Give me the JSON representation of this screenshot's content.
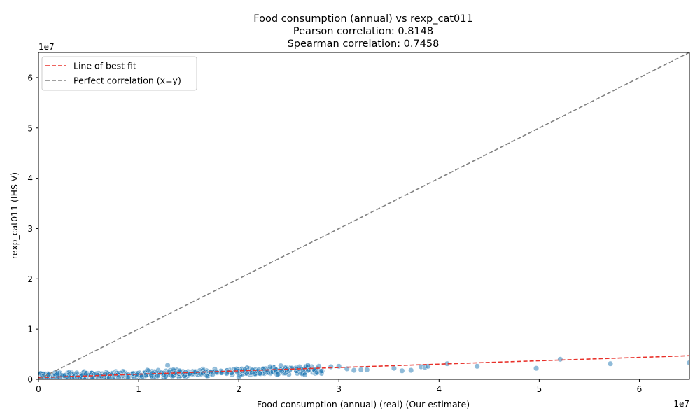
{
  "chart_data": {
    "type": "scatter",
    "title_lines": [
      "Food consumption (annual) vs rexp_cat011",
      "Pearson correlation: 0.8148",
      "Spearman correlation: 0.7458"
    ],
    "xlabel": "Food consumption (annual) (real) (Our estimate)",
    "ylabel": "rexp_cat011 (IHS-V)",
    "x_offset_label": "1e7",
    "y_offset_label": "1e7",
    "xlim": [
      0,
      65000000
    ],
    "ylim": [
      0,
      65000000
    ],
    "x_ticks": [
      0,
      10000000,
      20000000,
      30000000,
      40000000,
      50000000,
      60000000
    ],
    "x_tick_labels": [
      "0",
      "1",
      "2",
      "3",
      "4",
      "5",
      "6"
    ],
    "y_ticks": [
      0,
      10000000,
      20000000,
      30000000,
      40000000,
      50000000,
      60000000
    ],
    "y_tick_labels": [
      "0",
      "1",
      "2",
      "3",
      "4",
      "5",
      "6"
    ],
    "grid": false,
    "legend_position": "top-left",
    "legend": [
      {
        "label": "Line of best fit",
        "color": "#e8312a",
        "style": "dashed"
      },
      {
        "label": "Perfect correlation (x=y)",
        "color": "#808080",
        "style": "dashed"
      }
    ],
    "point_color": "#1f77b4",
    "fit_line": {
      "x": [
        0,
        65000000
      ],
      "y": [
        350000,
        4700000
      ],
      "color": "#e8312a"
    },
    "identity_line": {
      "x": [
        0,
        65000000
      ],
      "y": [
        0,
        65000000
      ],
      "color": "#808080"
    },
    "points": [
      [
        30000000,
        2600000
      ],
      [
        30800000,
        2100000
      ],
      [
        31500000,
        1800000
      ],
      [
        32200000,
        1900000
      ],
      [
        32800000,
        1900000
      ],
      [
        35500000,
        2200000
      ],
      [
        36300000,
        1700000
      ],
      [
        37200000,
        1800000
      ],
      [
        38200000,
        2500000
      ],
      [
        38600000,
        2400000
      ],
      [
        38900000,
        2600000
      ],
      [
        40800000,
        3100000
      ],
      [
        43800000,
        2600000
      ],
      [
        49700000,
        2200000
      ],
      [
        52100000,
        4000000
      ],
      [
        57100000,
        3100000
      ],
      [
        65000000,
        3300000
      ],
      [
        12900000,
        2800000
      ],
      [
        24200000,
        2700000
      ],
      [
        26900000,
        2800000
      ],
      [
        28000000,
        2600000
      ],
      [
        29200000,
        2500000
      ],
      [
        27800000,
        1300000
      ],
      [
        26600000,
        900000
      ],
      [
        23900000,
        1000000
      ],
      [
        22100000,
        1200000
      ],
      [
        20000000,
        500000
      ],
      [
        1000000,
        900000
      ],
      [
        500000,
        600000
      ],
      [
        300000,
        200000
      ]
    ],
    "dense_cluster": {
      "x_range": [
        200000,
        28500000
      ],
      "y_center_at_x0": 400000,
      "y_slope": 0.055,
      "y_spread": 900000,
      "count": 560
    }
  }
}
